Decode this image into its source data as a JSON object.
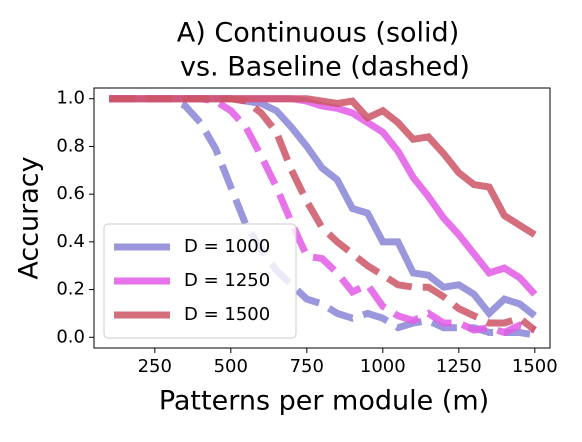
{
  "chart_data": {
    "type": "line",
    "title": [
      "A) Continuous (solid)",
      "vs. Baseline (dashed)"
    ],
    "x_label": "Patterns per module (m)",
    "y_label": "Accuracy",
    "x": [
      100,
      150,
      200,
      250,
      300,
      350,
      400,
      450,
      500,
      550,
      600,
      650,
      700,
      750,
      800,
      850,
      900,
      950,
      1000,
      1050,
      1100,
      1150,
      1200,
      1250,
      1300,
      1350,
      1400,
      1450,
      1500
    ],
    "series": [
      {
        "name": "D = 1000",
        "color": "#8a85d6",
        "values": [
          1,
          1,
          1,
          1,
          1,
          1,
          1,
          1,
          1,
          0.99,
          0.98,
          0.95,
          0.88,
          0.8,
          0.71,
          0.66,
          0.54,
          0.52,
          0.4,
          0.4,
          0.27,
          0.26,
          0.21,
          0.22,
          0.18,
          0.1,
          0.16,
          0.14,
          0.09
        ],
        "baseline": [
          1,
          1,
          1,
          1,
          1,
          0.97,
          0.9,
          0.79,
          0.63,
          0.47,
          0.37,
          0.28,
          0.22,
          0.16,
          0.14,
          0.1,
          0.08,
          0.1,
          0.08,
          0.04,
          0.06,
          0.07,
          0.04,
          0.04,
          0.04,
          0.02,
          0.02,
          0.02,
          0.01
        ]
      },
      {
        "name": "D = 1250",
        "color": "#e35ae8",
        "values": [
          1,
          1,
          1,
          1,
          1,
          1,
          1,
          1,
          1,
          1,
          1,
          1,
          1,
          0.99,
          0.97,
          0.96,
          0.94,
          0.9,
          0.86,
          0.78,
          0.67,
          0.59,
          0.5,
          0.43,
          0.35,
          0.27,
          0.29,
          0.25,
          0.18
        ],
        "baseline": [
          1,
          1,
          1,
          1,
          1,
          1,
          1,
          0.99,
          0.95,
          0.88,
          0.76,
          0.63,
          0.48,
          0.34,
          0.33,
          0.27,
          0.19,
          0.22,
          0.13,
          0.09,
          0.07,
          0.1,
          0.06,
          0.06,
          0.03,
          0.04,
          0.02,
          0.05,
          0.03
        ]
      },
      {
        "name": "D = 1500",
        "color": "#cc5566",
        "values": [
          1,
          1,
          1,
          1,
          1,
          1,
          1,
          1,
          1,
          1,
          1,
          1,
          1,
          1,
          0.99,
          0.98,
          0.99,
          0.92,
          0.95,
          0.9,
          0.83,
          0.84,
          0.77,
          0.69,
          0.64,
          0.63,
          0.51,
          0.47,
          0.43
        ],
        "baseline": [
          1,
          1,
          1,
          1,
          1,
          1,
          1,
          1,
          1,
          0.99,
          0.94,
          0.86,
          0.7,
          0.57,
          0.46,
          0.4,
          0.35,
          0.3,
          0.26,
          0.22,
          0.21,
          0.21,
          0.17,
          0.12,
          0.09,
          0.06,
          0.06,
          0.08,
          0.03
        ]
      }
    ],
    "xlim": [
      50,
      1550
    ],
    "xticks": [
      250,
      500,
      750,
      1000,
      1250,
      1500
    ],
    "ylim": [
      -0.045,
      1.045
    ],
    "yticks": [
      {
        "value": 0,
        "label": "0.0"
      },
      0.2,
      0.4,
      0.6,
      0.8,
      {
        "value": 1,
        "label": "1.0"
      }
    ],
    "legend": "lower left",
    "grid": false
  }
}
